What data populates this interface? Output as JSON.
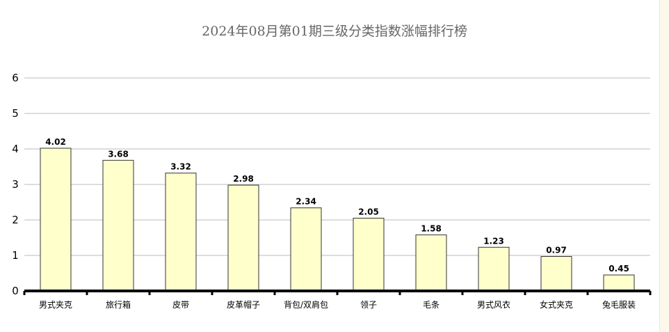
{
  "chart_data": {
    "type": "bar",
    "title": "2024年08月第01期三级分类指数涨幅排行榜",
    "xlabel": "",
    "ylabel": "",
    "categories": [
      "男式夹克",
      "旅行箱",
      "皮带",
      "皮革帽子",
      "背包/双肩包",
      "领子",
      "毛条",
      "男式风衣",
      "女式夹克",
      "兔毛服装"
    ],
    "values": [
      4.02,
      3.68,
      3.32,
      2.98,
      2.34,
      2.05,
      1.58,
      1.23,
      0.97,
      0.45
    ],
    "data_labels": [
      "4.02",
      "3.68",
      "3.32",
      "2.98",
      "2.34",
      "2.05",
      "1.58",
      "1.23",
      "0.97",
      "0.45"
    ],
    "yticks": [
      "0",
      "1",
      "2",
      "3",
      "4",
      "5",
      "6"
    ],
    "ylim": [
      0,
      6
    ],
    "grid": true,
    "legend": "none",
    "colors": {
      "bar_fill": "#ffffcc",
      "bar_stroke": "#333333",
      "grid": "#bbbbbb",
      "axis": "#000000",
      "title": "#666666"
    }
  }
}
